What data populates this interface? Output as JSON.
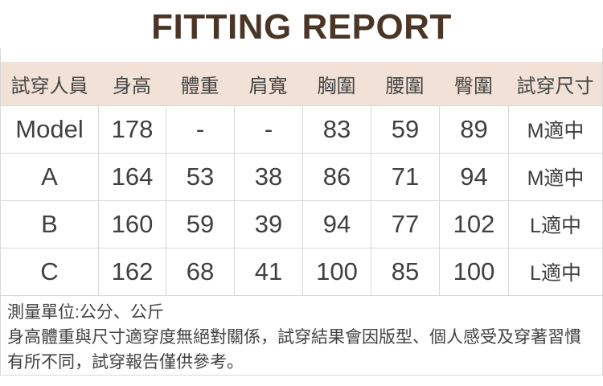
{
  "title": "FITTING REPORT",
  "colors": {
    "title_text": "#4b3527",
    "header_background": "#f2e1d6",
    "table_border": "#d9d9d9",
    "body_text": "#404040",
    "page_background": "#ffffff"
  },
  "table": {
    "headers": [
      "試穿人員",
      "身高",
      "體重",
      "肩寬",
      "胸圍",
      "腰圍",
      "臀圍",
      "試穿尺寸"
    ],
    "rows": [
      {
        "person": "Model",
        "height": "178",
        "weight": "-",
        "shoulder": "-",
        "chest": "83",
        "waist": "59",
        "hip": "89",
        "size": "M適中"
      },
      {
        "person": "A",
        "height": "164",
        "weight": "53",
        "shoulder": "38",
        "chest": "86",
        "waist": "71",
        "hip": "94",
        "size": "M適中"
      },
      {
        "person": "B",
        "height": "160",
        "weight": "59",
        "shoulder": "39",
        "chest": "94",
        "waist": "77",
        "hip": "102",
        "size": "L適中"
      },
      {
        "person": "C",
        "height": "162",
        "weight": "68",
        "shoulder": "41",
        "chest": "100",
        "waist": "85",
        "hip": "100",
        "size": "L適中"
      }
    ]
  },
  "footer": {
    "unit_note": "測量單位:公分、公斤",
    "disclaimer": "身高體重與尺寸適穿度無絕對關係，試穿結果會因版型、個人感受及穿著習慣有所不同，試穿報告僅供參考。"
  }
}
